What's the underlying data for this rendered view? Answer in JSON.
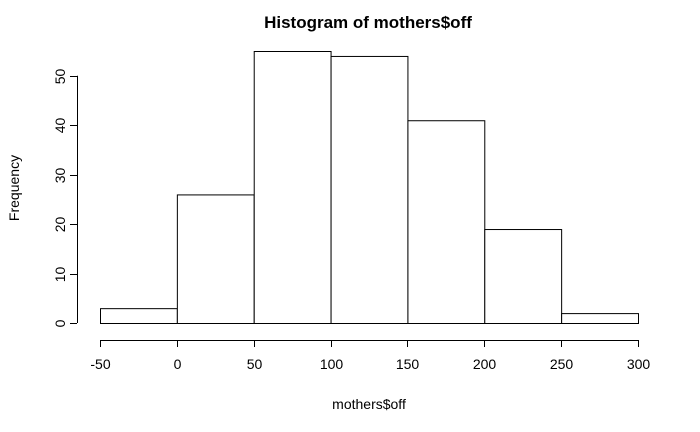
{
  "chart_data": {
    "type": "bar",
    "title": "Histogram of mothers$off",
    "xlabel": "mothers$off",
    "ylabel": "Frequency",
    "bins": [
      {
        "from": -50,
        "to": 0,
        "count": 3
      },
      {
        "from": 0,
        "to": 50,
        "count": 26
      },
      {
        "from": 50,
        "to": 100,
        "count": 55
      },
      {
        "from": 100,
        "to": 150,
        "count": 54
      },
      {
        "from": 150,
        "to": 200,
        "count": 41
      },
      {
        "from": 200,
        "to": 250,
        "count": 19
      },
      {
        "from": 250,
        "to": 300,
        "count": 2
      }
    ],
    "xticks": [
      -50,
      0,
      50,
      100,
      150,
      200,
      250,
      300
    ],
    "yticks": [
      0,
      10,
      20,
      30,
      40,
      50
    ],
    "xlim": [
      -50,
      300
    ],
    "ylim": [
      0,
      55
    ],
    "grid": false,
    "bar_fill": "#ffffff",
    "bar_stroke": "#000000"
  }
}
